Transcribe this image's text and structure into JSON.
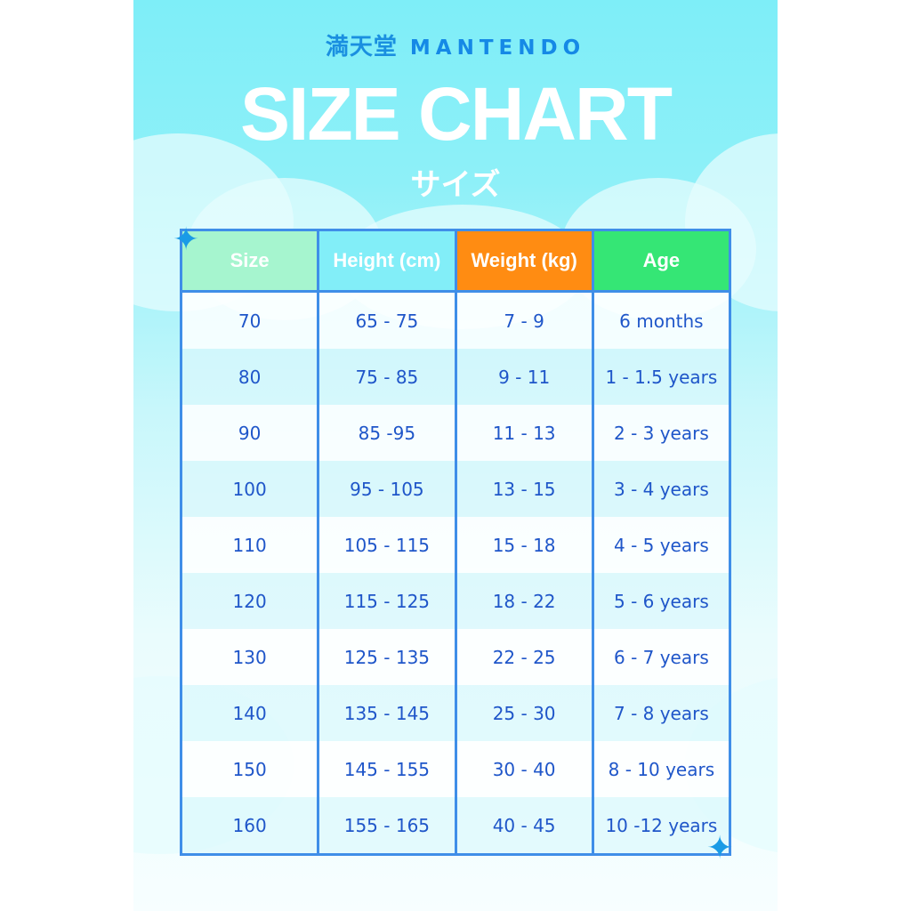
{
  "brand": {
    "cjk": "満天堂",
    "latin": "MANTENDO"
  },
  "title": "SIZE CHART",
  "subtitle": "サイズ",
  "colors": {
    "size_header": "#a6f5cf",
    "height_header": "#82eef8",
    "weight_header": "#ff8c12",
    "age_header": "#35e675",
    "border": "#3f8ee8",
    "text": "#1f56c9"
  },
  "table": {
    "headers": [
      "Size",
      "Height (cm)",
      "Weight (kg)",
      "Age"
    ],
    "rows": [
      [
        "70",
        "65 - 75",
        "7 - 9",
        "6 months"
      ],
      [
        "80",
        "75 - 85",
        "9 - 11",
        "1 - 1.5 years"
      ],
      [
        "90",
        "85 -95",
        "11 - 13",
        "2 - 3 years"
      ],
      [
        "100",
        "95 - 105",
        "13 - 15",
        "3 - 4 years"
      ],
      [
        "110",
        "105 - 115",
        "15 - 18",
        "4 - 5 years"
      ],
      [
        "120",
        "115 - 125",
        "18 - 22",
        "5 - 6 years"
      ],
      [
        "130",
        "125 - 135",
        "22 - 25",
        "6 - 7 years"
      ],
      [
        "140",
        "135 - 145",
        "25 - 30",
        "7 - 8 years"
      ],
      [
        "150",
        "145 - 155",
        "30 - 40",
        "8 - 10 years"
      ],
      [
        "160",
        "155 - 165",
        "40 - 45",
        "10 -12 years"
      ]
    ]
  }
}
